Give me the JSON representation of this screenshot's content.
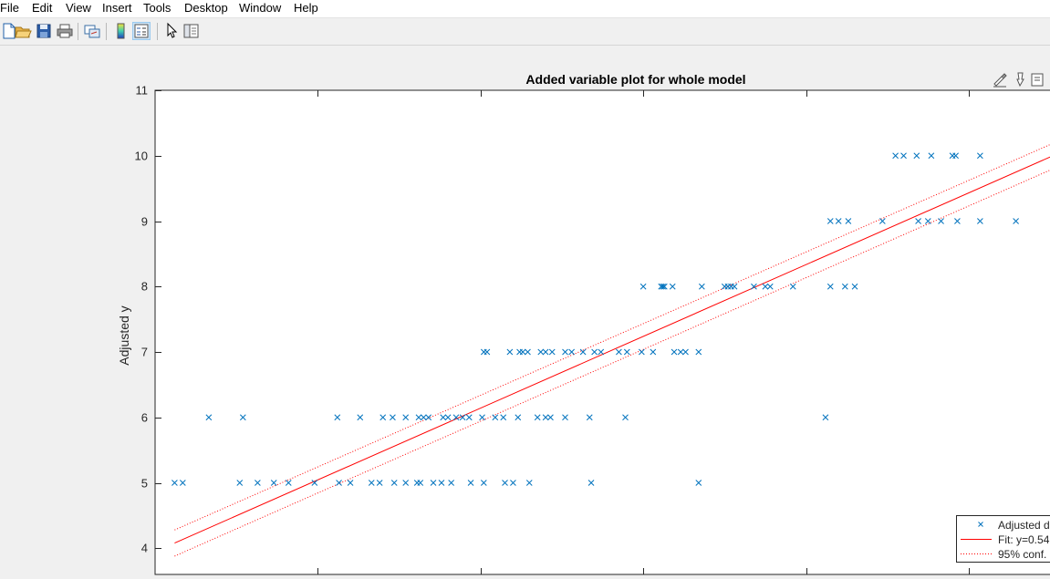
{
  "menu": [
    "File",
    "Edit",
    "View",
    "Insert",
    "Tools",
    "Desktop",
    "Window",
    "Help"
  ],
  "toolbar": {
    "buttons": [
      "new-figure-icon",
      "open-file-icon",
      "save-icon",
      "print-icon",
      "link-plot-icon",
      "colorbar-icon",
      "legend-icon",
      "edit-plot-arrow-icon",
      "property-inspector-icon"
    ],
    "pressed": "legend-icon"
  },
  "axes_toolbar": [
    "brush-icon",
    "data-tips-icon",
    "export-icon"
  ],
  "colors": {
    "data": "#0072bd",
    "fit": "#ff0000",
    "conf": "#ff0000",
    "axis": "#262626",
    "figure_bg": "#f0f0f0"
  },
  "chart_data": {
    "type": "scatter",
    "title": "Added variable plot for whole model",
    "xlabel": "",
    "ylabel": "Adjusted y",
    "ylim": [
      3.6,
      11
    ],
    "yticks": [
      4,
      5,
      6,
      7,
      8,
      9,
      10,
      11
    ],
    "xtick_labels_visible": false,
    "grid": false,
    "legend_position": "bottom-right",
    "legend": [
      "Adjusted d",
      "Fit: y=0.54",
      "95% conf."
    ],
    "series": [
      {
        "name": "Adjusted d",
        "marker": "x",
        "points": [
          [
            0.12,
            5
          ],
          [
            0.17,
            5
          ],
          [
            0.33,
            6
          ],
          [
            0.52,
            5
          ],
          [
            0.54,
            6
          ],
          [
            0.63,
            5
          ],
          [
            0.73,
            5
          ],
          [
            0.82,
            5
          ],
          [
            0.98,
            5
          ],
          [
            1.12,
            6
          ],
          [
            1.13,
            5
          ],
          [
            1.2,
            5
          ],
          [
            1.26,
            6
          ],
          [
            1.33,
            5
          ],
          [
            1.38,
            5
          ],
          [
            1.4,
            6
          ],
          [
            1.46,
            6
          ],
          [
            1.47,
            5
          ],
          [
            1.54,
            5
          ],
          [
            1.54,
            6
          ],
          [
            1.61,
            5
          ],
          [
            1.62,
            6
          ],
          [
            1.63,
            5
          ],
          [
            1.65,
            6
          ],
          [
            1.68,
            6
          ],
          [
            1.71,
            5
          ],
          [
            1.76,
            5
          ],
          [
            1.77,
            6
          ],
          [
            1.8,
            6
          ],
          [
            1.82,
            5
          ],
          [
            1.85,
            6
          ],
          [
            1.89,
            6
          ],
          [
            1.93,
            6
          ],
          [
            1.94,
            5
          ],
          [
            2.01,
            6
          ],
          [
            2.02,
            5
          ],
          [
            2.02,
            7
          ],
          [
            2.04,
            7
          ],
          [
            2.09,
            6
          ],
          [
            2.14,
            6
          ],
          [
            2.15,
            5
          ],
          [
            2.18,
            7
          ],
          [
            2.2,
            5
          ],
          [
            2.23,
            6
          ],
          [
            2.24,
            7
          ],
          [
            2.26,
            7
          ],
          [
            2.29,
            7
          ],
          [
            2.3,
            5
          ],
          [
            2.35,
            6
          ],
          [
            2.37,
            7
          ],
          [
            2.4,
            7
          ],
          [
            2.4,
            6
          ],
          [
            2.43,
            6
          ],
          [
            2.44,
            7
          ],
          [
            2.52,
            7
          ],
          [
            2.52,
            6
          ],
          [
            2.56,
            7
          ],
          [
            2.63,
            7
          ],
          [
            2.67,
            6
          ],
          [
            2.68,
            5
          ],
          [
            2.7,
            7
          ],
          [
            2.74,
            7
          ],
          [
            2.85,
            7
          ],
          [
            2.9,
            7
          ],
          [
            2.89,
            6
          ],
          [
            2.99,
            7
          ],
          [
            3.0,
            8
          ],
          [
            3.06,
            7
          ],
          [
            3.11,
            8
          ],
          [
            3.12,
            8
          ],
          [
            3.13,
            8
          ],
          [
            3.18,
            8
          ],
          [
            3.19,
            7
          ],
          [
            3.23,
            7
          ],
          [
            3.26,
            7
          ],
          [
            3.34,
            7
          ],
          [
            3.34,
            5
          ],
          [
            3.36,
            8
          ],
          [
            3.5,
            8
          ],
          [
            3.52,
            8
          ],
          [
            3.54,
            8
          ],
          [
            3.56,
            8
          ],
          [
            3.68,
            8
          ],
          [
            3.75,
            8
          ],
          [
            3.78,
            8
          ],
          [
            3.92,
            8
          ],
          [
            4.12,
            6
          ],
          [
            4.15,
            9
          ],
          [
            4.15,
            8
          ],
          [
            4.2,
            9
          ],
          [
            4.24,
            8
          ],
          [
            4.26,
            9
          ],
          [
            4.3,
            8
          ],
          [
            4.47,
            9
          ],
          [
            4.55,
            10
          ],
          [
            4.6,
            10
          ],
          [
            4.68,
            10
          ],
          [
            4.69,
            9
          ],
          [
            4.75,
            9
          ],
          [
            4.77,
            10
          ],
          [
            4.83,
            9
          ],
          [
            4.9,
            10
          ],
          [
            4.92,
            10
          ],
          [
            4.93,
            9
          ],
          [
            5.07,
            10
          ],
          [
            5.07,
            9
          ],
          [
            5.29,
            9
          ],
          [
            5.5,
            10
          ]
        ]
      },
      {
        "name": "Fit: y=0.54",
        "style": "solid",
        "points": [
          [
            0.12,
            4.08
          ],
          [
            5.5,
            9.98
          ]
        ]
      },
      {
        "name": "95% conf.",
        "style": "dotted",
        "upper": [
          [
            0.12,
            4.28
          ],
          [
            5.5,
            10.17
          ]
        ],
        "lower": [
          [
            0.12,
            3.88
          ],
          [
            5.5,
            9.78
          ]
        ]
      }
    ]
  }
}
